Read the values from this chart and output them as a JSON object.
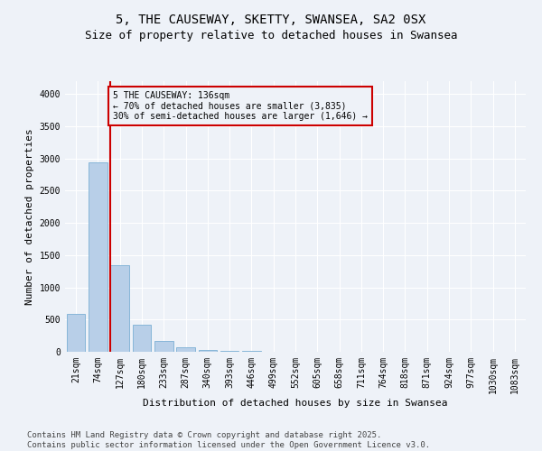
{
  "title": "5, THE CAUSEWAY, SKETTY, SWANSEA, SA2 0SX",
  "subtitle": "Size of property relative to detached houses in Swansea",
  "xlabel": "Distribution of detached houses by size in Swansea",
  "ylabel": "Number of detached properties",
  "categories": [
    "21sqm",
    "74sqm",
    "127sqm",
    "180sqm",
    "233sqm",
    "287sqm",
    "340sqm",
    "393sqm",
    "446sqm",
    "499sqm",
    "552sqm",
    "605sqm",
    "658sqm",
    "711sqm",
    "764sqm",
    "818sqm",
    "871sqm",
    "924sqm",
    "977sqm",
    "1030sqm",
    "1083sqm"
  ],
  "values": [
    590,
    2940,
    1340,
    420,
    165,
    75,
    35,
    20,
    10,
    5,
    0,
    0,
    0,
    0,
    0,
    0,
    0,
    0,
    0,
    0,
    0
  ],
  "bar_color": "#b8cfe8",
  "bar_edge_color": "#7bafd4",
  "vline_color": "#cc0000",
  "vline_pos": 2,
  "annotation_text": "5 THE CAUSEWAY: 136sqm\n← 70% of detached houses are smaller (3,835)\n30% of semi-detached houses are larger (1,646) →",
  "annotation_box_edgecolor": "#cc0000",
  "ylim": [
    0,
    4200
  ],
  "yticks": [
    0,
    500,
    1000,
    1500,
    2000,
    2500,
    3000,
    3500,
    4000
  ],
  "background_color": "#eef2f8",
  "grid_color": "#ffffff",
  "footer_text": "Contains HM Land Registry data © Crown copyright and database right 2025.\nContains public sector information licensed under the Open Government Licence v3.0.",
  "title_fontsize": 10,
  "subtitle_fontsize": 9,
  "xlabel_fontsize": 8,
  "ylabel_fontsize": 8,
  "tick_fontsize": 7,
  "annotation_fontsize": 7,
  "footer_fontsize": 6.5
}
